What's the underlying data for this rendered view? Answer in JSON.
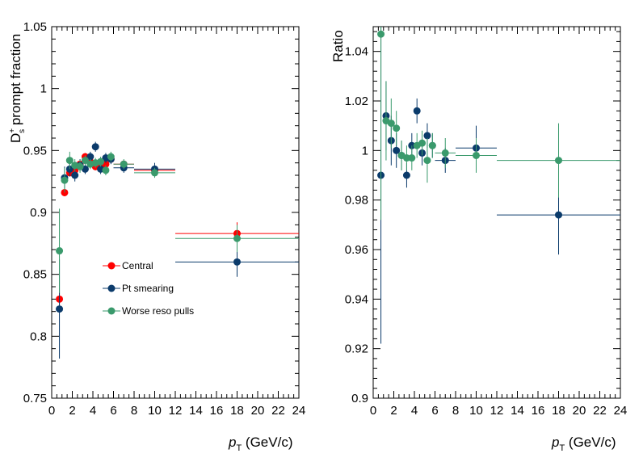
{
  "chart_data": [
    {
      "type": "scatter",
      "panel": "left",
      "title": "",
      "xlabel_main": "p",
      "xlabel_sub": "T",
      "xlabel_unit": " (GeV/c)",
      "ylabel_main": "D",
      "ylabel_sup": "+",
      "ylabel_sub": "s",
      "ylabel_rest": " prompt fraction",
      "xlim": [
        0,
        24
      ],
      "ylim": [
        0.75,
        1.05
      ],
      "x_ticks": [
        0,
        2,
        4,
        6,
        8,
        10,
        12,
        14,
        16,
        18,
        20,
        22,
        24
      ],
      "y_ticks": [
        0.75,
        0.8,
        0.85,
        0.9,
        0.95,
        1,
        1.05
      ],
      "y_tick_labels": [
        "0.75",
        "0.8",
        "0.85",
        "0.9",
        "0.95",
        "1",
        "1.05"
      ],
      "grid": false,
      "legend_position": "bottom-left",
      "series": [
        {
          "name": "Central",
          "color": "#ff0000",
          "points": [
            {
              "x": 0.75,
              "y": 0.83,
              "xerr": 0.25,
              "yerr": 0.005
            },
            {
              "x": 1.25,
              "y": 0.916,
              "xerr": 0.25,
              "yerr": 0.003
            },
            {
              "x": 1.75,
              "y": 0.932,
              "xerr": 0.25,
              "yerr": 0.003
            },
            {
              "x": 2.25,
              "y": 0.934,
              "xerr": 0.25,
              "yerr": 0.003
            },
            {
              "x": 2.75,
              "y": 0.939,
              "xerr": 0.25,
              "yerr": 0.003
            },
            {
              "x": 3.25,
              "y": 0.945,
              "xerr": 0.25,
              "yerr": 0.003
            },
            {
              "x": 3.75,
              "y": 0.941,
              "xerr": 0.25,
              "yerr": 0.003
            },
            {
              "x": 4.25,
              "y": 0.937,
              "xerr": 0.25,
              "yerr": 0.003
            },
            {
              "x": 4.75,
              "y": 0.937,
              "xerr": 0.25,
              "yerr": 0.003
            },
            {
              "x": 5.25,
              "y": 0.939,
              "xerr": 0.25,
              "yerr": 0.003
            },
            {
              "x": 5.75,
              "y": 0.943,
              "xerr": 0.25,
              "yerr": 0.003
            },
            {
              "x": 7.0,
              "y": 0.939,
              "xerr": 1.0,
              "yerr": 0.003
            },
            {
              "x": 10.0,
              "y": 0.934,
              "xerr": 2.0,
              "yerr": 0.004
            },
            {
              "x": 18.0,
              "y": 0.883,
              "xerr": 6.0,
              "yerr": 0.009
            }
          ]
        },
        {
          "name": "Pt smearing",
          "color": "#0b3b6b",
          "points": [
            {
              "x": 0.75,
              "y": 0.822,
              "xerr": 0.25,
              "yerr": 0.04
            },
            {
              "x": 1.25,
              "y": 0.928,
              "xerr": 0.25,
              "yerr": 0.009
            },
            {
              "x": 1.75,
              "y": 0.935,
              "xerr": 0.25,
              "yerr": 0.006
            },
            {
              "x": 2.25,
              "y": 0.93,
              "xerr": 0.25,
              "yerr": 0.005
            },
            {
              "x": 2.75,
              "y": 0.938,
              "xerr": 0.25,
              "yerr": 0.005
            },
            {
              "x": 3.25,
              "y": 0.935,
              "xerr": 0.25,
              "yerr": 0.004
            },
            {
              "x": 3.75,
              "y": 0.945,
              "xerr": 0.25,
              "yerr": 0.004
            },
            {
              "x": 4.25,
              "y": 0.953,
              "xerr": 0.25,
              "yerr": 0.004
            },
            {
              "x": 4.75,
              "y": 0.935,
              "xerr": 0.25,
              "yerr": 0.004
            },
            {
              "x": 5.25,
              "y": 0.944,
              "xerr": 0.25,
              "yerr": 0.004
            },
            {
              "x": 5.75,
              "y": 0.943,
              "xerr": 0.25,
              "yerr": 0.004
            },
            {
              "x": 7.0,
              "y": 0.936,
              "xerr": 1.0,
              "yerr": 0.004
            },
            {
              "x": 10.0,
              "y": 0.935,
              "xerr": 2.0,
              "yerr": 0.005
            },
            {
              "x": 18.0,
              "y": 0.86,
              "xerr": 6.0,
              "yerr": 0.012
            }
          ]
        },
        {
          "name": "Worse reso pulls",
          "color": "#3a9a6c",
          "points": [
            {
              "x": 0.75,
              "y": 0.869,
              "xerr": 0.25,
              "yerr": 0.034
            },
            {
              "x": 1.25,
              "y": 0.926,
              "xerr": 0.25,
              "yerr": 0.01
            },
            {
              "x": 1.75,
              "y": 0.942,
              "xerr": 0.25,
              "yerr": 0.007
            },
            {
              "x": 2.25,
              "y": 0.938,
              "xerr": 0.25,
              "yerr": 0.005
            },
            {
              "x": 2.75,
              "y": 0.937,
              "xerr": 0.25,
              "yerr": 0.005
            },
            {
              "x": 3.25,
              "y": 0.942,
              "xerr": 0.25,
              "yerr": 0.004
            },
            {
              "x": 3.75,
              "y": 0.939,
              "xerr": 0.25,
              "yerr": 0.004
            },
            {
              "x": 4.25,
              "y": 0.94,
              "xerr": 0.25,
              "yerr": 0.004
            },
            {
              "x": 4.75,
              "y": 0.941,
              "xerr": 0.25,
              "yerr": 0.004
            },
            {
              "x": 5.25,
              "y": 0.934,
              "xerr": 0.25,
              "yerr": 0.004
            },
            {
              "x": 5.75,
              "y": 0.945,
              "xerr": 0.25,
              "yerr": 0.004
            },
            {
              "x": 7.0,
              "y": 0.939,
              "xerr": 1.0,
              "yerr": 0.004
            },
            {
              "x": 10.0,
              "y": 0.932,
              "xerr": 2.0,
              "yerr": 0.004
            },
            {
              "x": 18.0,
              "y": 0.879,
              "xerr": 6.0,
              "yerr": 0.011
            }
          ]
        }
      ]
    },
    {
      "type": "scatter",
      "panel": "right",
      "title": "",
      "xlabel_main": "p",
      "xlabel_sub": "T",
      "xlabel_unit": " (GeV/c)",
      "ylabel": "Ratio",
      "xlim": [
        0,
        24
      ],
      "ylim": [
        0.9,
        1.05
      ],
      "x_ticks": [
        0,
        2,
        4,
        6,
        8,
        10,
        12,
        14,
        16,
        18,
        20,
        22,
        24
      ],
      "y_ticks": [
        0.9,
        0.92,
        0.94,
        0.96,
        0.98,
        1,
        1.02,
        1.04
      ],
      "y_tick_labels": [
        "0.9",
        "0.92",
        "0.94",
        "0.96",
        "0.98",
        "1",
        "1.02",
        "1.04"
      ],
      "grid": false,
      "series": [
        {
          "name": "Pt smearing",
          "color": "#0b3b6b",
          "points": [
            {
              "x": 0.75,
              "y": 0.99,
              "xerr": 0.25,
              "yerr": 0.068
            },
            {
              "x": 1.25,
              "y": 1.014,
              "xerr": 0.25,
              "yerr": 0.014
            },
            {
              "x": 1.75,
              "y": 1.004,
              "xerr": 0.25,
              "yerr": 0.01
            },
            {
              "x": 2.25,
              "y": 1.0,
              "xerr": 0.25,
              "yerr": 0.007
            },
            {
              "x": 2.75,
              "y": 0.998,
              "xerr": 0.25,
              "yerr": 0.006
            },
            {
              "x": 3.25,
              "y": 0.99,
              "xerr": 0.25,
              "yerr": 0.005
            },
            {
              "x": 3.75,
              "y": 1.002,
              "xerr": 0.25,
              "yerr": 0.005
            },
            {
              "x": 4.25,
              "y": 1.016,
              "xerr": 0.25,
              "yerr": 0.005
            },
            {
              "x": 4.75,
              "y": 0.999,
              "xerr": 0.25,
              "yerr": 0.005
            },
            {
              "x": 5.25,
              "y": 1.006,
              "xerr": 0.25,
              "yerr": 0.005
            },
            {
              "x": 5.75,
              "y": 1.002,
              "xerr": 0.25,
              "yerr": 0.005
            },
            {
              "x": 7.0,
              "y": 0.996,
              "xerr": 1.0,
              "yerr": 0.005
            },
            {
              "x": 10.0,
              "y": 1.001,
              "xerr": 2.0,
              "yerr": 0.009
            },
            {
              "x": 18.0,
              "y": 0.974,
              "xerr": 6.0,
              "yerr": 0.016
            }
          ]
        },
        {
          "name": "Worse reso pulls",
          "color": "#3a9a6c",
          "points": [
            {
              "x": 0.75,
              "y": 1.047,
              "xerr": 0.25,
              "yerr": 0.075
            },
            {
              "x": 1.25,
              "y": 1.012,
              "xerr": 0.25,
              "yerr": 0.016
            },
            {
              "x": 1.75,
              "y": 1.011,
              "xerr": 0.25,
              "yerr": 0.01
            },
            {
              "x": 2.25,
              "y": 1.009,
              "xerr": 0.25,
              "yerr": 0.007
            },
            {
              "x": 2.75,
              "y": 0.998,
              "xerr": 0.25,
              "yerr": 0.006
            },
            {
              "x": 3.25,
              "y": 0.997,
              "xerr": 0.25,
              "yerr": 0.005
            },
            {
              "x": 3.75,
              "y": 0.997,
              "xerr": 0.25,
              "yerr": 0.005
            },
            {
              "x": 4.25,
              "y": 1.002,
              "xerr": 0.25,
              "yerr": 0.005
            },
            {
              "x": 4.75,
              "y": 1.003,
              "xerr": 0.25,
              "yerr": 0.005
            },
            {
              "x": 5.25,
              "y": 0.996,
              "xerr": 0.25,
              "yerr": 0.009
            },
            {
              "x": 5.75,
              "y": 1.002,
              "xerr": 0.25,
              "yerr": 0.005
            },
            {
              "x": 7.0,
              "y": 0.999,
              "xerr": 1.0,
              "yerr": 0.006
            },
            {
              "x": 10.0,
              "y": 0.998,
              "xerr": 2.0,
              "yerr": 0.007
            },
            {
              "x": 18.0,
              "y": 0.996,
              "xerr": 6.0,
              "yerr": 0.015
            }
          ]
        }
      ]
    }
  ]
}
